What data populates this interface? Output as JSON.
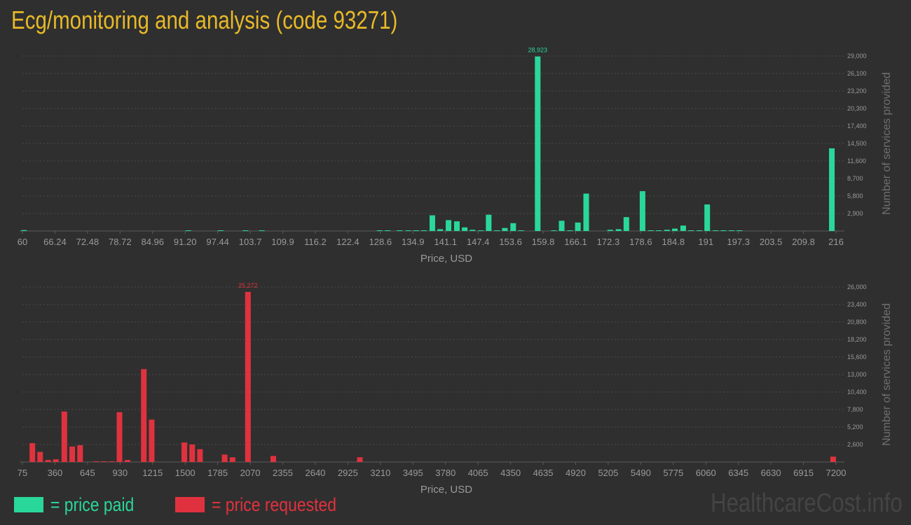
{
  "title": "Ecg/monitoring and analysis (code 93271)",
  "colors": {
    "title": "#e8b928",
    "paid": "#2ad79a",
    "requested": "#e0323e",
    "axis_text": "#9a9a9a",
    "grid": "#4a4a4a"
  },
  "legend": {
    "paid_label": "= price paid",
    "requested_label": "= price requested"
  },
  "watermark": "HealthcareCost.info",
  "chart_data": [
    {
      "type": "bar",
      "series_name": "price paid",
      "xlabel": "Price, USD",
      "ylabel": "Number of services provided",
      "xlim": [
        60,
        216
      ],
      "ylim": [
        0,
        29000
      ],
      "x_ticks": [
        "60",
        "66.24",
        "72.48",
        "78.72",
        "84.96",
        "91.20",
        "97.44",
        "103.7",
        "109.9",
        "116.2",
        "122.4",
        "128.6",
        "134.9",
        "141.1",
        "147.4",
        "153.6",
        "159.8",
        "166.1",
        "172.3",
        "178.6",
        "184.8",
        "191",
        "197.3",
        "203.5",
        "209.8",
        "216"
      ],
      "y_ticks": [
        2900,
        5800,
        8700,
        11600,
        14500,
        17400,
        20300,
        23200,
        26100,
        29000
      ],
      "y_tick_labels": [
        "2,900",
        "5,800",
        "8,700",
        "11,600",
        "14,500",
        "17,400",
        "20,300",
        "23,200",
        "26,100",
        "29,000"
      ],
      "max_label": "28,923",
      "points": [
        {
          "x": 60.3,
          "y": 150
        },
        {
          "x": 91.8,
          "y": 100
        },
        {
          "x": 98.0,
          "y": 80
        },
        {
          "x": 102.8,
          "y": 80
        },
        {
          "x": 105.9,
          "y": 100
        },
        {
          "x": 128.5,
          "y": 80
        },
        {
          "x": 130.0,
          "y": 100
        },
        {
          "x": 132.3,
          "y": 80
        },
        {
          "x": 134.0,
          "y": 80
        },
        {
          "x": 135.5,
          "y": 80
        },
        {
          "x": 137.0,
          "y": 80
        },
        {
          "x": 138.6,
          "y": 2600
        },
        {
          "x": 140.1,
          "y": 300
        },
        {
          "x": 141.7,
          "y": 1800
        },
        {
          "x": 143.3,
          "y": 1600
        },
        {
          "x": 144.8,
          "y": 600
        },
        {
          "x": 146.3,
          "y": 200
        },
        {
          "x": 147.9,
          "y": 80
        },
        {
          "x": 149.4,
          "y": 2700
        },
        {
          "x": 151.0,
          "y": 80
        },
        {
          "x": 152.5,
          "y": 500
        },
        {
          "x": 154.1,
          "y": 1300
        },
        {
          "x": 155.6,
          "y": 80
        },
        {
          "x": 158.8,
          "y": 28923
        },
        {
          "x": 161.9,
          "y": 80
        },
        {
          "x": 163.4,
          "y": 1700
        },
        {
          "x": 165.0,
          "y": 80
        },
        {
          "x": 166.5,
          "y": 1400
        },
        {
          "x": 168.1,
          "y": 6200
        },
        {
          "x": 172.7,
          "y": 200
        },
        {
          "x": 174.3,
          "y": 300
        },
        {
          "x": 175.8,
          "y": 2300
        },
        {
          "x": 178.9,
          "y": 6600
        },
        {
          "x": 180.5,
          "y": 80
        },
        {
          "x": 182.0,
          "y": 80
        },
        {
          "x": 183.6,
          "y": 200
        },
        {
          "x": 185.1,
          "y": 400
        },
        {
          "x": 186.7,
          "y": 900
        },
        {
          "x": 188.2,
          "y": 80
        },
        {
          "x": 189.8,
          "y": 80
        },
        {
          "x": 191.3,
          "y": 4400
        },
        {
          "x": 192.9,
          "y": 80
        },
        {
          "x": 194.4,
          "y": 80
        },
        {
          "x": 196.0,
          "y": 80
        },
        {
          "x": 197.5,
          "y": 80
        },
        {
          "x": 215.2,
          "y": 13700
        }
      ]
    },
    {
      "type": "bar",
      "series_name": "price requested",
      "xlabel": "Price, USD",
      "ylabel": "Number of services provided",
      "xlim": [
        75,
        7200
      ],
      "ylim": [
        0,
        26000
      ],
      "x_ticks": [
        "75",
        "360",
        "645",
        "930",
        "1215",
        "1500",
        "1785",
        "2070",
        "2355",
        "2640",
        "2925",
        "3210",
        "3495",
        "3780",
        "4065",
        "4350",
        "4635",
        "4920",
        "5205",
        "5490",
        "5775",
        "6060",
        "6345",
        "6630",
        "6915",
        "7200"
      ],
      "y_ticks": [
        2600,
        5200,
        7800,
        10400,
        13000,
        15600,
        18200,
        20800,
        23400,
        26000
      ],
      "y_tick_labels": [
        "2,600",
        "5,200",
        "7,800",
        "10,400",
        "13,000",
        "15,600",
        "18,200",
        "20,800",
        "23,400",
        "26,000"
      ],
      "max_label": "25,272",
      "points": [
        {
          "x": 162,
          "y": 2800
        },
        {
          "x": 230,
          "y": 1500
        },
        {
          "x": 300,
          "y": 300
        },
        {
          "x": 368,
          "y": 400
        },
        {
          "x": 442,
          "y": 7500
        },
        {
          "x": 511,
          "y": 2300
        },
        {
          "x": 580,
          "y": 2500
        },
        {
          "x": 720,
          "y": 80
        },
        {
          "x": 788,
          "y": 80
        },
        {
          "x": 857,
          "y": 80
        },
        {
          "x": 925,
          "y": 7400
        },
        {
          "x": 995,
          "y": 300
        },
        {
          "x": 1138,
          "y": 13800
        },
        {
          "x": 1207,
          "y": 6300
        },
        {
          "x": 1493,
          "y": 2900
        },
        {
          "x": 1562,
          "y": 2600
        },
        {
          "x": 1630,
          "y": 1900
        },
        {
          "x": 1846,
          "y": 1100
        },
        {
          "x": 1915,
          "y": 700
        },
        {
          "x": 2050,
          "y": 25272
        },
        {
          "x": 2272,
          "y": 900
        },
        {
          "x": 3030,
          "y": 700
        },
        {
          "x": 7175,
          "y": 800
        }
      ]
    }
  ]
}
